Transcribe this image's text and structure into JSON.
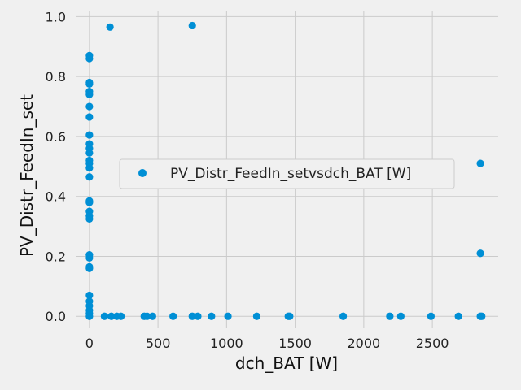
{
  "chart_data": {
    "type": "scatter",
    "xlabel": "dch_BAT [W]",
    "ylabel": "PV_Distr_FeedIn_set",
    "xlim": [
      -100,
      2980
    ],
    "ylim": [
      -0.04,
      1.02
    ],
    "xticks": [
      0,
      500,
      1000,
      1500,
      2000,
      2500
    ],
    "yticks": [
      0.0,
      0.2,
      0.4,
      0.6,
      0.8,
      1.0
    ],
    "xtick_labels": [
      "0",
      "500",
      "1000",
      "1500",
      "2000",
      "2500"
    ],
    "ytick_labels": [
      "0.0",
      "0.2",
      "0.4",
      "0.6",
      "0.8",
      "1.0"
    ],
    "grid": true,
    "legend_position": "center-right",
    "series": [
      {
        "name": "PV_Distr_FeedIn_setvsdch_BAT [W]",
        "color": "#008fd5",
        "points": [
          [
            0,
            0.87
          ],
          [
            0,
            0.86
          ],
          [
            0,
            0.78
          ],
          [
            0,
            0.775
          ],
          [
            0,
            0.75
          ],
          [
            0,
            0.74
          ],
          [
            0,
            0.7
          ],
          [
            0,
            0.665
          ],
          [
            0,
            0.605
          ],
          [
            0,
            0.575
          ],
          [
            0,
            0.56
          ],
          [
            0,
            0.545
          ],
          [
            0,
            0.52
          ],
          [
            0,
            0.51
          ],
          [
            0,
            0.495
          ],
          [
            0,
            0.465
          ],
          [
            0,
            0.385
          ],
          [
            0,
            0.38
          ],
          [
            0,
            0.35
          ],
          [
            0,
            0.335
          ],
          [
            0,
            0.325
          ],
          [
            0,
            0.205
          ],
          [
            0,
            0.195
          ],
          [
            0,
            0.165
          ],
          [
            0,
            0.16
          ],
          [
            0,
            0.07
          ],
          [
            0,
            0.05
          ],
          [
            0,
            0.035
          ],
          [
            0,
            0.02
          ],
          [
            0,
            0.01
          ],
          [
            0,
            0.0
          ],
          [
            150,
            0.965
          ],
          [
            750,
            0.97
          ],
          [
            110,
            0.0
          ],
          [
            160,
            0.0
          ],
          [
            200,
            0.0
          ],
          [
            230,
            0.0
          ],
          [
            400,
            0.0
          ],
          [
            420,
            0.0
          ],
          [
            460,
            0.0
          ],
          [
            610,
            0.0
          ],
          [
            750,
            0.0
          ],
          [
            790,
            0.0
          ],
          [
            890,
            0.0
          ],
          [
            1010,
            0.0
          ],
          [
            1220,
            0.0
          ],
          [
            1450,
            0.0
          ],
          [
            1460,
            0.0
          ],
          [
            1850,
            0.0
          ],
          [
            2190,
            0.0
          ],
          [
            2270,
            0.0
          ],
          [
            2490,
            0.0
          ],
          [
            2690,
            0.0
          ],
          [
            2850,
            0.0
          ],
          [
            2860,
            0.0
          ],
          [
            2850,
            0.21
          ],
          [
            2850,
            0.51
          ]
        ]
      }
    ]
  }
}
